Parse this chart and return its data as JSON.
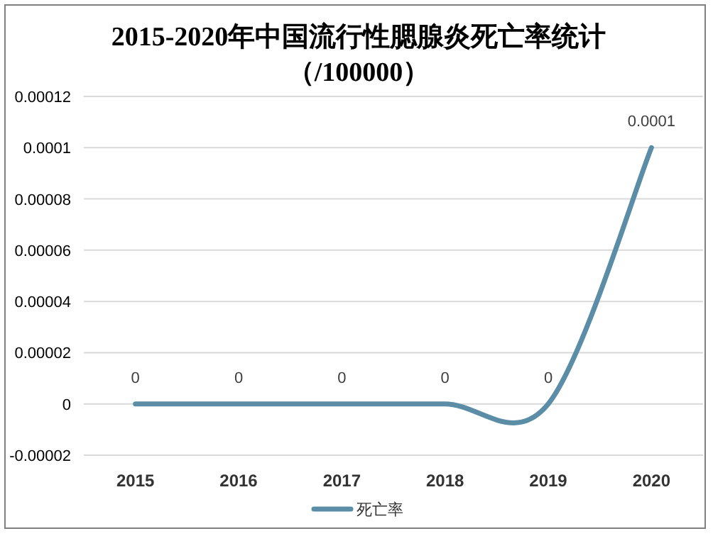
{
  "chart_data": {
    "type": "line",
    "title": "2015-2020年中国流行性腮腺炎死亡率统计（/100000）",
    "categories": [
      "2015",
      "2016",
      "2017",
      "2018",
      "2019",
      "2020"
    ],
    "series": [
      {
        "name": "死亡率",
        "color": "#5b8ea6",
        "values": [
          0,
          0,
          0,
          0,
          0,
          0.0001
        ]
      }
    ],
    "ylim": [
      -2e-05,
      0.00012
    ],
    "yticks": [
      {
        "value": -2e-05,
        "label": "-0.00002"
      },
      0,
      {
        "value": 2e-05,
        "label": "0.00002"
      },
      {
        "value": 4e-05,
        "label": "0.00004"
      },
      {
        "value": 6e-05,
        "label": "0.00006"
      },
      {
        "value": 8e-05,
        "label": "0.00008"
      },
      0.0001,
      0.00012
    ],
    "grid": "y",
    "legend": "bottom",
    "data_labels": true,
    "marker": "none",
    "line_style": "solid"
  }
}
